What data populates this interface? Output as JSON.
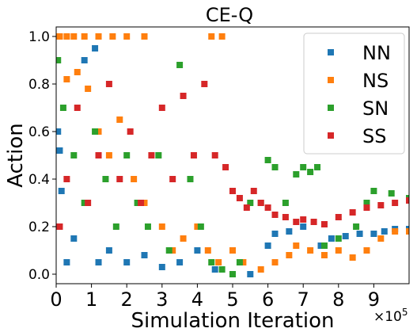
{
  "chart_data": {
    "type": "scatter",
    "title": "CE-Q",
    "xlabel": "Simulation Iteration",
    "ylabel": "Action",
    "x_offset_label": "×10",
    "x_offset_exponent": "5",
    "xlim": [
      0,
      10
    ],
    "ylim": [
      -0.04,
      1.04
    ],
    "xticks": [
      0,
      1,
      2,
      3,
      4,
      5,
      6,
      7,
      8,
      9
    ],
    "yticks": [
      0.0,
      0.2,
      0.4,
      0.6,
      0.8,
      1.0
    ],
    "ytick_labels": [
      "0.0",
      "0.2",
      "0.4",
      "0.6",
      "0.8",
      "1.0"
    ],
    "grid": false,
    "legend_position": "top-right",
    "series": [
      {
        "name": "NN",
        "color": "#1f77b4",
        "points": [
          [
            0.05,
            0.6
          ],
          [
            0.1,
            0.52
          ],
          [
            0.15,
            0.35
          ],
          [
            0.3,
            0.05
          ],
          [
            0.5,
            0.15
          ],
          [
            0.8,
            0.9
          ],
          [
            1.1,
            0.95
          ],
          [
            1.2,
            0.05
          ],
          [
            1.5,
            0.1
          ],
          [
            2.0,
            0.05
          ],
          [
            2.5,
            0.08
          ],
          [
            3.0,
            0.03
          ],
          [
            3.5,
            0.05
          ],
          [
            4.0,
            0.1
          ],
          [
            4.5,
            0.02
          ],
          [
            5.0,
            0.0
          ],
          [
            5.5,
            0.0
          ],
          [
            6.0,
            0.12
          ],
          [
            6.2,
            0.17
          ],
          [
            6.6,
            0.18
          ],
          [
            7.0,
            0.2
          ],
          [
            7.5,
            0.12
          ],
          [
            7.8,
            0.15
          ],
          [
            8.2,
            0.16
          ],
          [
            8.6,
            0.17
          ],
          [
            9.0,
            0.17
          ],
          [
            9.3,
            0.18
          ],
          [
            9.6,
            0.19
          ],
          [
            10.0,
            0.19
          ]
        ]
      },
      {
        "name": "NS",
        "color": "#ff7f0e",
        "points": [
          [
            0.1,
            1.0
          ],
          [
            0.3,
            1.0
          ],
          [
            0.5,
            1.0
          ],
          [
            0.8,
            1.0
          ],
          [
            1.2,
            1.0
          ],
          [
            1.6,
            1.0
          ],
          [
            2.0,
            1.0
          ],
          [
            2.5,
            1.0
          ],
          [
            4.4,
            1.0
          ],
          [
            4.7,
            1.0
          ],
          [
            0.3,
            0.82
          ],
          [
            0.6,
            0.85
          ],
          [
            0.9,
            0.78
          ],
          [
            1.2,
            0.6
          ],
          [
            1.5,
            0.5
          ],
          [
            1.8,
            0.65
          ],
          [
            2.2,
            0.4
          ],
          [
            2.5,
            0.3
          ],
          [
            3.0,
            0.2
          ],
          [
            3.3,
            0.1
          ],
          [
            3.6,
            0.15
          ],
          [
            4.0,
            0.2
          ],
          [
            4.3,
            0.1
          ],
          [
            4.6,
            0.05
          ],
          [
            5.0,
            0.1
          ],
          [
            5.3,
            0.05
          ],
          [
            5.8,
            0.02
          ],
          [
            6.2,
            0.05
          ],
          [
            6.6,
            0.08
          ],
          [
            6.8,
            0.12
          ],
          [
            7.2,
            0.1
          ],
          [
            7.6,
            0.08
          ],
          [
            8.0,
            0.1
          ],
          [
            8.4,
            0.07
          ],
          [
            8.8,
            0.1
          ],
          [
            9.2,
            0.15
          ],
          [
            9.6,
            0.18
          ],
          [
            10.0,
            0.18
          ]
        ]
      },
      {
        "name": "SN",
        "color": "#2ca02c",
        "points": [
          [
            0.05,
            0.9
          ],
          [
            0.2,
            0.7
          ],
          [
            0.5,
            0.5
          ],
          [
            0.8,
            0.3
          ],
          [
            1.1,
            0.6
          ],
          [
            1.4,
            0.4
          ],
          [
            1.7,
            0.2
          ],
          [
            2.0,
            0.5
          ],
          [
            2.3,
            0.3
          ],
          [
            2.6,
            0.2
          ],
          [
            2.9,
            0.5
          ],
          [
            3.2,
            0.1
          ],
          [
            3.5,
            0.88
          ],
          [
            3.8,
            0.4
          ],
          [
            4.1,
            0.2
          ],
          [
            4.4,
            0.05
          ],
          [
            4.7,
            0.02
          ],
          [
            5.0,
            0.0
          ],
          [
            5.2,
            0.05
          ],
          [
            5.5,
            0.3
          ],
          [
            5.8,
            0.3
          ],
          [
            6.0,
            0.48
          ],
          [
            6.2,
            0.45
          ],
          [
            6.5,
            0.3
          ],
          [
            6.8,
            0.42
          ],
          [
            7.0,
            0.45
          ],
          [
            7.2,
            0.43
          ],
          [
            7.4,
            0.45
          ],
          [
            7.6,
            0.12
          ],
          [
            8.0,
            0.15
          ],
          [
            8.5,
            0.2
          ],
          [
            8.8,
            0.3
          ],
          [
            9.0,
            0.35
          ],
          [
            9.5,
            0.34
          ],
          [
            10.0,
            0.32
          ]
        ]
      },
      {
        "name": "SS",
        "color": "#d62728",
        "points": [
          [
            0.1,
            0.2
          ],
          [
            0.3,
            0.4
          ],
          [
            0.6,
            0.7
          ],
          [
            0.9,
            0.3
          ],
          [
            1.2,
            0.5
          ],
          [
            1.5,
            0.8
          ],
          [
            1.8,
            0.4
          ],
          [
            2.1,
            0.6
          ],
          [
            2.4,
            0.3
          ],
          [
            2.7,
            0.5
          ],
          [
            3.0,
            0.7
          ],
          [
            3.3,
            0.4
          ],
          [
            3.6,
            0.75
          ],
          [
            3.9,
            0.5
          ],
          [
            4.2,
            0.8
          ],
          [
            4.5,
            0.5
          ],
          [
            4.8,
            0.45
          ],
          [
            5.0,
            0.35
          ],
          [
            5.2,
            0.32
          ],
          [
            5.4,
            0.28
          ],
          [
            5.6,
            0.35
          ],
          [
            5.8,
            0.3
          ],
          [
            6.0,
            0.28
          ],
          [
            6.2,
            0.25
          ],
          [
            6.5,
            0.24
          ],
          [
            6.8,
            0.22
          ],
          [
            7.0,
            0.23
          ],
          [
            7.3,
            0.22
          ],
          [
            7.6,
            0.21
          ],
          [
            8.0,
            0.24
          ],
          [
            8.4,
            0.26
          ],
          [
            8.8,
            0.28
          ],
          [
            9.2,
            0.29
          ],
          [
            9.6,
            0.3
          ],
          [
            10.0,
            0.31
          ]
        ]
      }
    ]
  }
}
